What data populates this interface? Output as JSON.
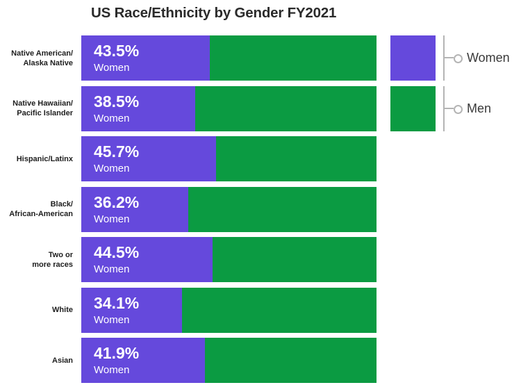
{
  "chart_data": {
    "type": "bar",
    "orientation": "horizontal",
    "stacked": true,
    "unit": "%",
    "title": "US Race/Ethnicity by Gender FY2021",
    "categories": [
      "Native American/Alaska Native",
      "Native Hawaiian/Pacific Islander",
      "Hispanic/Latinx",
      "Black/African-American",
      "Two or more races",
      "White",
      "Asian"
    ],
    "category_label_lines": [
      [
        "Native American/",
        "Alaska Native"
      ],
      [
        "Native Hawaiian/",
        "Pacific Islander"
      ],
      [
        "Hispanic/Latinx"
      ],
      [
        "Black/",
        "African-American"
      ],
      [
        "Two or",
        "more races"
      ],
      [
        "White"
      ],
      [
        "Asian"
      ]
    ],
    "series": [
      {
        "name": "Women",
        "color": "#6549DC",
        "values": [
          43.5,
          38.5,
          45.7,
          36.2,
          44.5,
          34.1,
          41.9
        ]
      },
      {
        "name": "Men",
        "color": "#0B9B42",
        "values": [
          56.5,
          61.5,
          54.3,
          63.8,
          55.5,
          65.9,
          58.1
        ]
      }
    ],
    "value_labels": [
      "43.5%",
      "38.5%",
      "45.7%",
      "36.2%",
      "44.5%",
      "34.1%",
      "41.9%"
    ],
    "value_sublabel": "Women",
    "xlim": [
      0,
      100
    ],
    "grid": false,
    "legend_position": "top-right"
  },
  "legend": {
    "items": [
      {
        "label": "Women",
        "color": "#6549DC"
      },
      {
        "label": "Men",
        "color": "#0B9B42"
      }
    ]
  },
  "colors": {
    "women": "#6549DC",
    "men": "#0B9B42",
    "title_text": "#2B2B2B",
    "category_text": "#1E1E1E",
    "bar_text": "#FFFFFF",
    "legend_text": "#3A3A3A",
    "legend_line": "#B4B4B4",
    "background": "#FFFFFF"
  }
}
